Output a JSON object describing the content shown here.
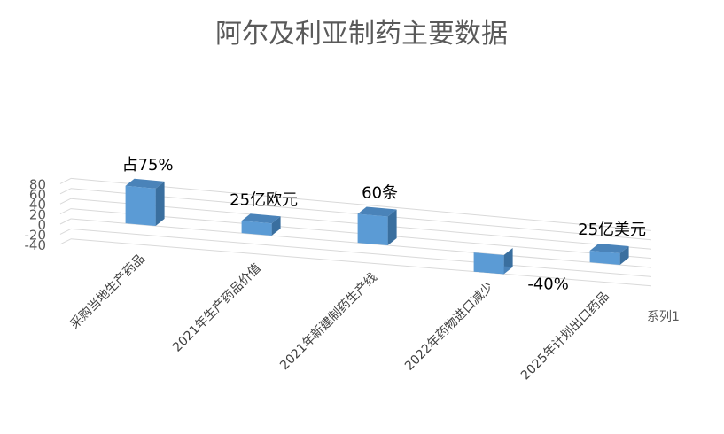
{
  "chart_data": {
    "type": "bar",
    "title": "阿尔及利亚制药主要数据",
    "categories": [
      "采购当地生产药品",
      "2021年生产药品价值",
      "2021年新建制药生产线",
      "2022年药物进口减少",
      "2025年计划出口药品"
    ],
    "series": [
      {
        "name": "系列1",
        "values": [
          75,
          25,
          60,
          -40,
          25
        ],
        "data_labels": [
          "占75%",
          "25亿欧元",
          "60条",
          "-40%",
          "25亿美元"
        ]
      }
    ],
    "yticks": [
      "80",
      "60",
      "40",
      "20",
      "0",
      "-20",
      "-40"
    ],
    "ylim": [
      -40,
      80
    ],
    "xlabel": "",
    "ylabel": "",
    "grid": true,
    "legend_position": "right",
    "colors": {
      "bar_front": "#5b9bd5",
      "bar_top": "#4a83b9",
      "bar_side": "#3a6f9f",
      "grid": "#d9d9d9"
    }
  }
}
